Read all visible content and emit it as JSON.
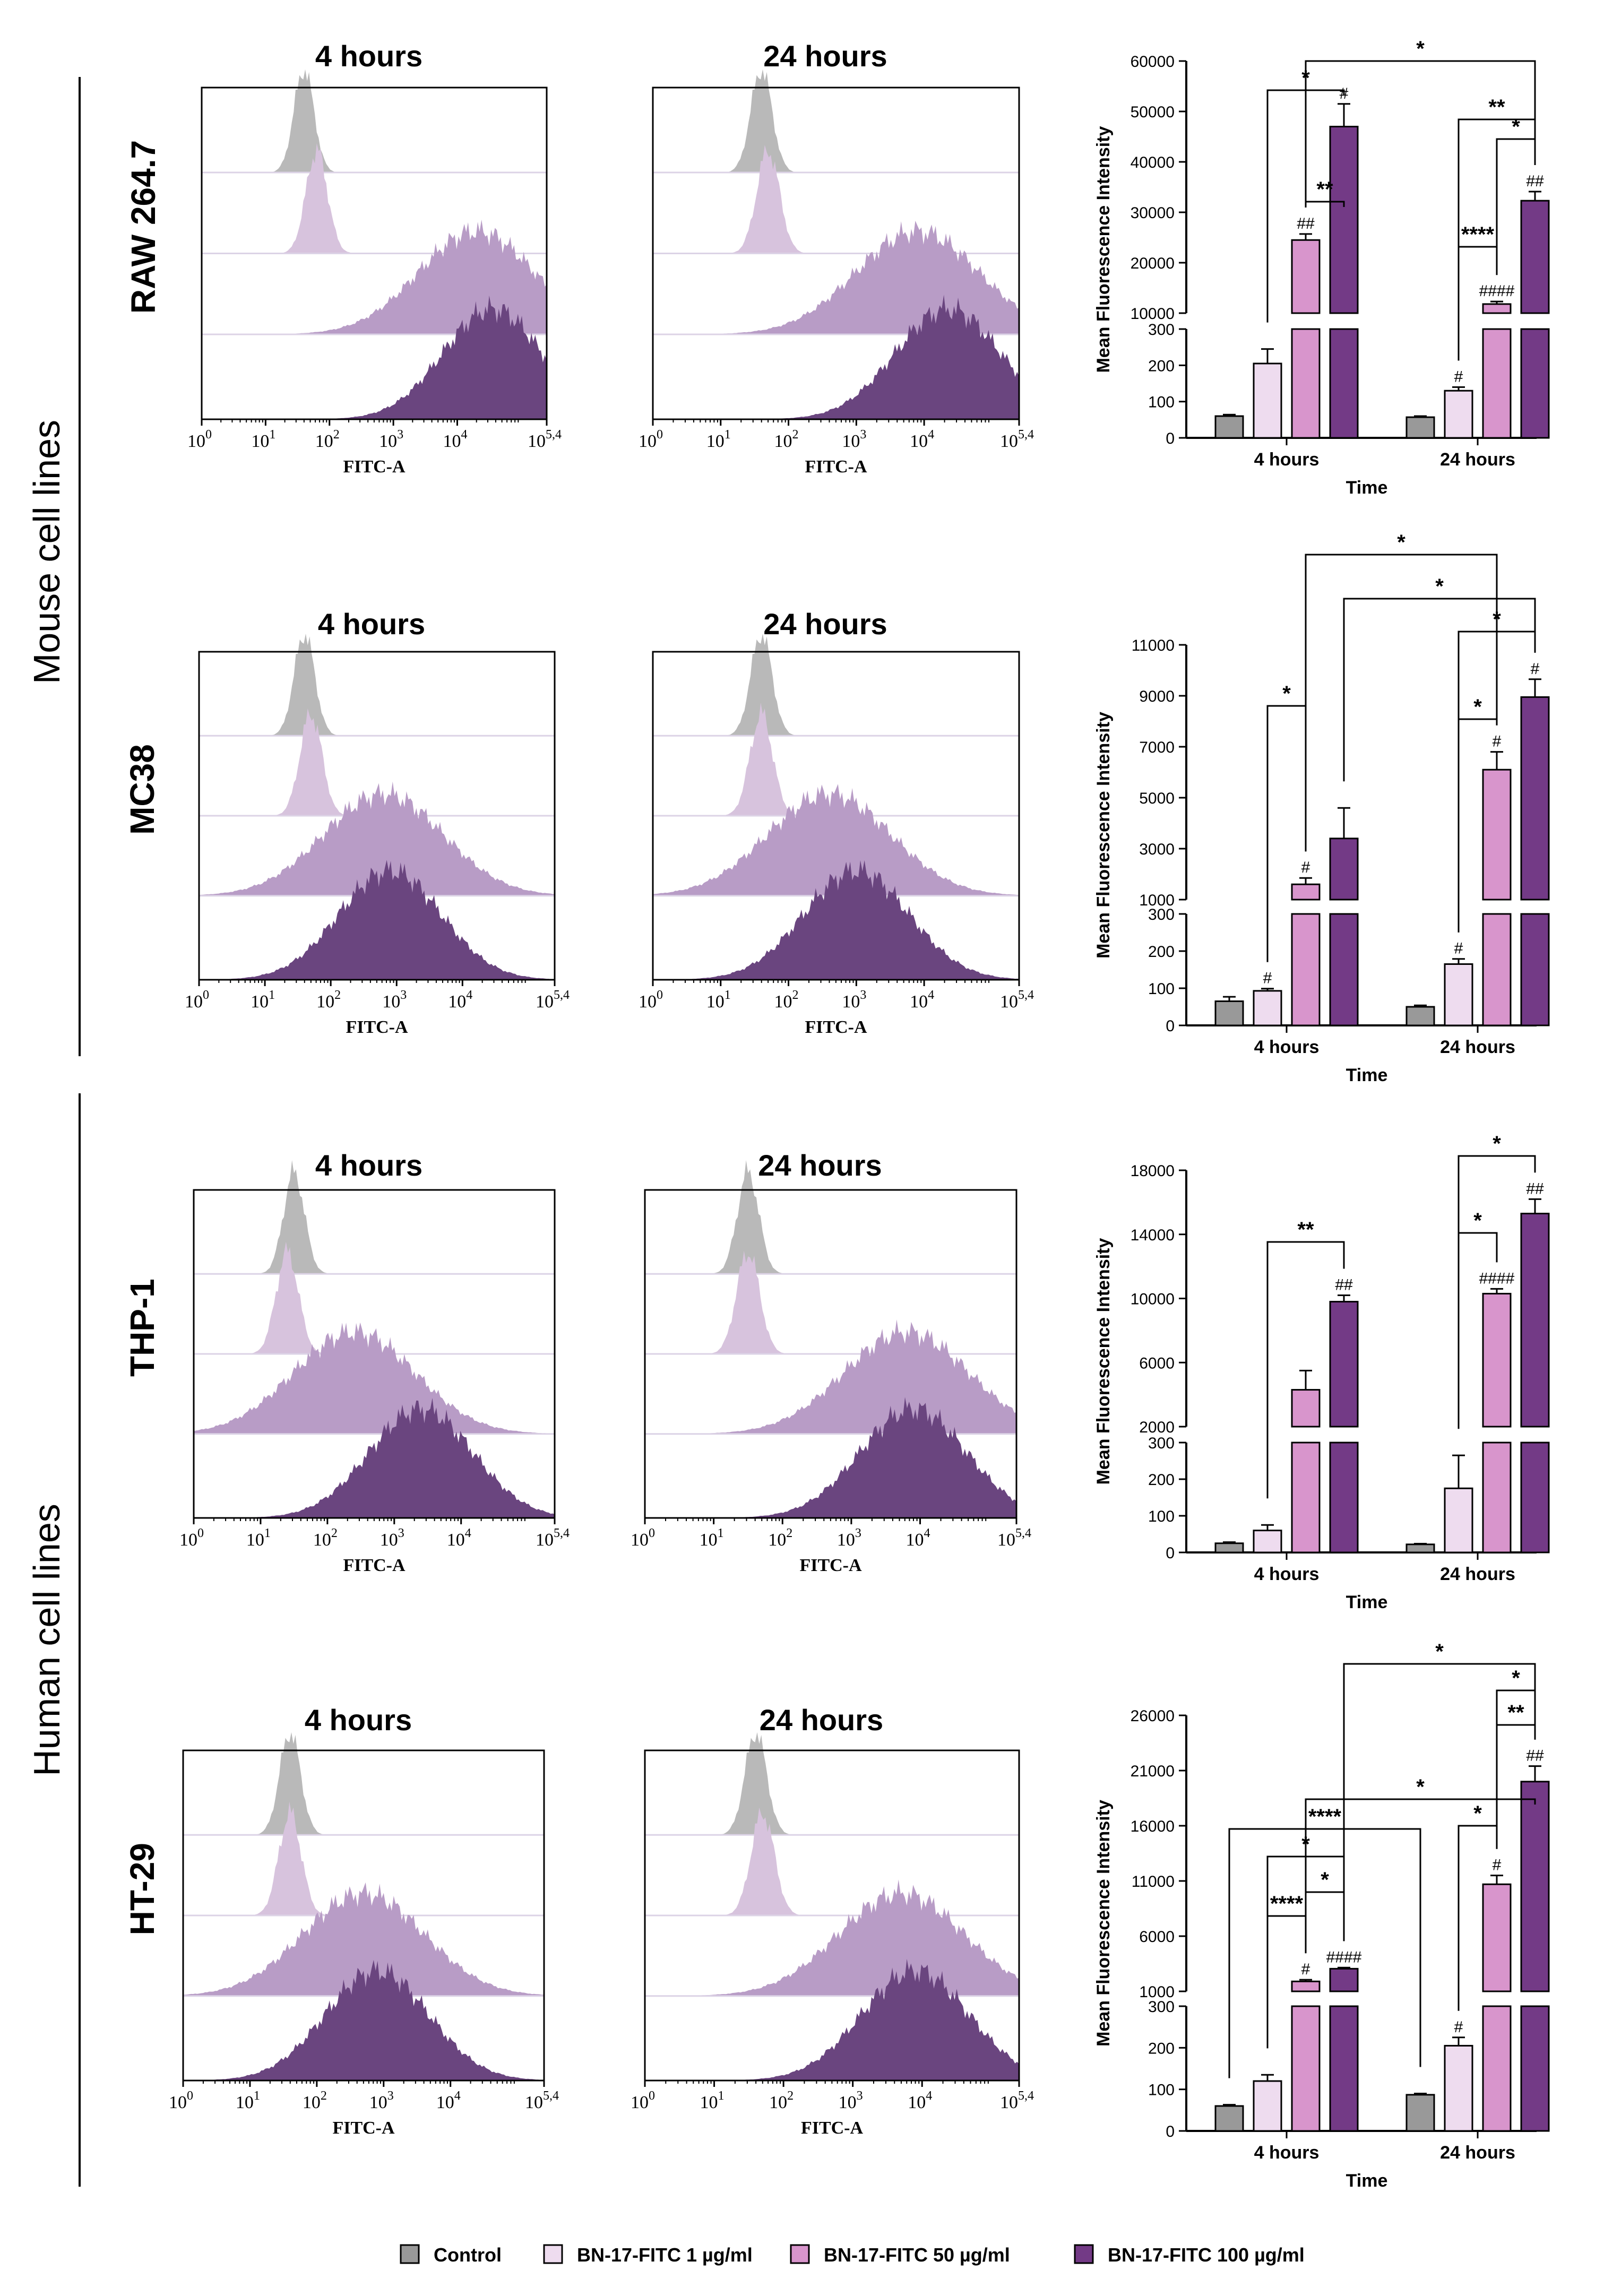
{
  "group_labels": {
    "mouse": "Mouse cell lines",
    "human": "Human cell lines"
  },
  "time_labels": [
    "4 hours",
    "24 hours"
  ],
  "hist_axis": {
    "xlabel": "FITC-A",
    "tick_labels": [
      "10^0",
      "10^1",
      "10^2",
      "10^3",
      "10^4",
      "10^5,4"
    ]
  },
  "colors": {
    "control": "#b9b9b9",
    "c1": "#d7c3dd",
    "c50": "#b89cc6",
    "c100": "#6a457f"
  },
  "legend": {
    "items": [
      {
        "label": "Control",
        "color": "#999999"
      },
      {
        "label": "BN-17-FITC 1 µg/ml",
        "color": "#eedcef"
      },
      {
        "label": "BN-17-FITC 50 µg/ml",
        "color": "#d895cc"
      },
      {
        "label": "BN-17-FITC 100 µg/ml",
        "color": "#733a86"
      }
    ]
  },
  "cell_lines": [
    {
      "name": "RAW 264.7",
      "peaks": {
        "h4": [
          1.6,
          1.8,
          4.3,
          4.55
        ],
        "h24": [
          1.6,
          1.7,
          3.9,
          4.35
        ]
      }
    },
    {
      "name": "MC38",
      "peaks": {
        "h4": [
          1.6,
          1.7,
          2.8,
          2.9
        ],
        "h24": [
          1.6,
          1.6,
          2.6,
          3.0
        ]
      }
    },
    {
      "name": "THP-1",
      "peaks": {
        "h4": [
          1.5,
          1.4,
          2.4,
          3.4
        ],
        "h24": [
          1.5,
          1.5,
          3.8,
          3.9
        ]
      }
    },
    {
      "name": "HT-29",
      "peaks": {
        "h4": [
          1.6,
          1.6,
          2.7,
          2.9
        ],
        "h24": [
          1.6,
          1.7,
          3.7,
          3.9
        ]
      }
    }
  ],
  "chart_data": [
    {
      "type": "bar",
      "title": "RAW 264.7",
      "xlabel": "Time",
      "ylabel": "Mean Fluorescence Intensity",
      "categories": [
        "4 hours",
        "24 hours"
      ],
      "axis": {
        "low_range": [
          0,
          300
        ],
        "low_ticks": [
          "0",
          "100",
          "200",
          "300"
        ],
        "high_range": [
          10000,
          60000
        ],
        "high_ticks": [
          "10000",
          "20000",
          "30000",
          "40000",
          "50000",
          "60000"
        ]
      },
      "series": [
        {
          "name": "Control",
          "values": [
            60,
            57
          ],
          "errors": [
            4,
            3
          ],
          "marks": [
            "",
            ""
          ]
        },
        {
          "name": "BN-17-FITC 1 µg/ml",
          "values": [
            205,
            130
          ],
          "errors": [
            40,
            10
          ],
          "marks": [
            "",
            "#"
          ]
        },
        {
          "name": "BN-17-FITC 50 µg/ml",
          "values": [
            24500,
            11800
          ],
          "errors": [
            1200,
            500
          ],
          "marks": [
            "##",
            "####"
          ]
        },
        {
          "name": "BN-17-FITC 100 µg/ml",
          "values": [
            47000,
            32300
          ],
          "errors": [
            4500,
            1800
          ],
          "marks": [
            "#",
            "##"
          ]
        }
      ],
      "significance": [
        "**",
        "*",
        "*",
        "****",
        "*",
        "**"
      ]
    },
    {
      "type": "bar",
      "title": "MC38",
      "xlabel": "Time",
      "ylabel": "Mean Fluorescence Intensity",
      "categories": [
        "4 hours",
        "24 hours"
      ],
      "axis": {
        "low_range": [
          0,
          300
        ],
        "low_ticks": [
          "0",
          "100",
          "200",
          "300"
        ],
        "high_range": [
          1000,
          11000
        ],
        "high_ticks": [
          "1000",
          "3000",
          "5000",
          "7000",
          "9000",
          "11000"
        ]
      },
      "series": [
        {
          "name": "Control",
          "values": [
            65,
            50
          ],
          "errors": [
            12,
            4
          ],
          "marks": [
            "",
            ""
          ]
        },
        {
          "name": "BN-17-FITC 1 µg/ml",
          "values": [
            93,
            165
          ],
          "errors": [
            6,
            14
          ],
          "marks": [
            "#",
            "#"
          ]
        },
        {
          "name": "BN-17-FITC 50 µg/ml",
          "values": [
            1600,
            6100
          ],
          "errors": [
            250,
            700
          ],
          "marks": [
            "#",
            "#"
          ]
        },
        {
          "name": "BN-17-FITC 100 µg/ml",
          "values": [
            3400,
            8950
          ],
          "errors": [
            1200,
            700
          ],
          "marks": [
            "",
            "#"
          ]
        }
      ],
      "significance": [
        "*",
        "*",
        "*",
        "*",
        "*"
      ]
    },
    {
      "type": "bar",
      "title": "THP-1",
      "xlabel": "Time",
      "ylabel": "Mean Fluorescence Intensity",
      "categories": [
        "4 hours",
        "24 hours"
      ],
      "axis": {
        "low_range": [
          0,
          300
        ],
        "low_ticks": [
          "0",
          "100",
          "200",
          "300"
        ],
        "high_range": [
          2000,
          18000
        ],
        "high_ticks": [
          "2000",
          "6000",
          "10000",
          "14000",
          "18000"
        ]
      },
      "series": [
        {
          "name": "Control",
          "values": [
            25,
            22
          ],
          "errors": [
            3,
            2
          ],
          "marks": [
            "",
            ""
          ]
        },
        {
          "name": "BN-17-FITC 1 µg/ml",
          "values": [
            60,
            175
          ],
          "errors": [
            15,
            90
          ],
          "marks": [
            "",
            ""
          ]
        },
        {
          "name": "BN-17-FITC 50 µg/ml",
          "values": [
            4300,
            10300
          ],
          "errors": [
            1200,
            300
          ],
          "marks": [
            "",
            "####"
          ]
        },
        {
          "name": "BN-17-FITC 100 µg/ml",
          "values": [
            9800,
            15300
          ],
          "errors": [
            400,
            900
          ],
          "marks": [
            "##",
            "##"
          ]
        }
      ],
      "significance": [
        "**",
        "*",
        "*"
      ]
    },
    {
      "type": "bar",
      "title": "HT-29",
      "xlabel": "Time",
      "ylabel": "Mean Fluorescence Intensity",
      "categories": [
        "4 hours",
        "24 hours"
      ],
      "axis": {
        "low_range": [
          0,
          300
        ],
        "low_ticks": [
          "0",
          "100",
          "200",
          "300"
        ],
        "high_range": [
          1000,
          26000
        ],
        "high_ticks": [
          "1000",
          "6000",
          "11000",
          "16000",
          "21000",
          "26000"
        ]
      },
      "series": [
        {
          "name": "Control",
          "values": [
            60,
            87
          ],
          "errors": [
            3,
            3
          ],
          "marks": [
            "",
            ""
          ]
        },
        {
          "name": "BN-17-FITC 1 µg/ml",
          "values": [
            120,
            205
          ],
          "errors": [
            15,
            20
          ],
          "marks": [
            "",
            "#"
          ]
        },
        {
          "name": "BN-17-FITC 50 µg/ml",
          "values": [
            1900,
            10700
          ],
          "errors": [
            150,
            800
          ],
          "marks": [
            "#",
            "#"
          ]
        },
        {
          "name": "BN-17-FITC 100 µg/ml",
          "values": [
            3050,
            20000
          ],
          "errors": [
            100,
            1400
          ],
          "marks": [
            "####",
            "##"
          ]
        }
      ],
      "significance": [
        "****",
        "*",
        "*",
        "****",
        "*",
        "*",
        "**",
        "*",
        "*"
      ]
    }
  ]
}
